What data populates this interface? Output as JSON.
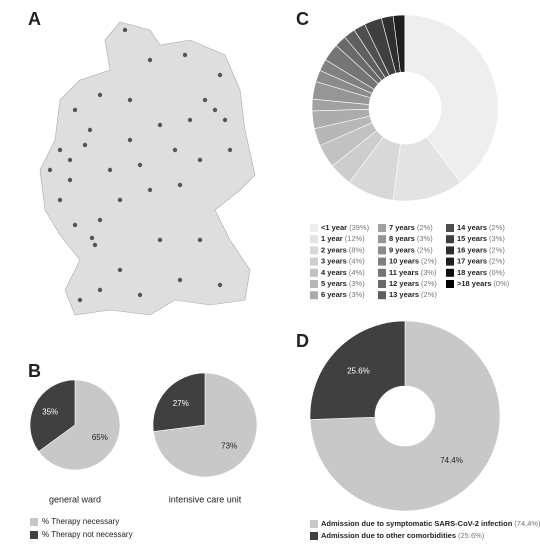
{
  "panels": [
    "A",
    "B",
    "C",
    "D"
  ],
  "chart_data": [
    {
      "type": "pie",
      "title": "general ward",
      "categories": [
        "% Therapy necessary",
        "% Therapy not necessary"
      ],
      "values": [
        65,
        35
      ],
      "value_labels": [
        "65%",
        "35%"
      ],
      "colors": [
        "#c8c8c8",
        "#404040"
      ]
    },
    {
      "type": "pie",
      "title": "intensive care unit",
      "values": [
        73,
        27
      ],
      "value_labels": [
        "73%",
        "27%"
      ],
      "colors": [
        "#c8c8c8",
        "#404040"
      ]
    },
    {
      "type": "donut",
      "categories": [
        "<1 year",
        "1 year",
        "2 years",
        "3 years",
        "4 years",
        "5 years",
        "6 years",
        "7 years",
        "8 years",
        "9 years",
        "10 years",
        "11 years",
        "12 years",
        "13 years",
        "14 years",
        "15 years",
        "16 years",
        "17 years",
        "18 years",
        ">18 years"
      ],
      "values": [
        39,
        12,
        8,
        4,
        4,
        3,
        3,
        2,
        3,
        2,
        2,
        3,
        2,
        2,
        2,
        3,
        2,
        2,
        0,
        0
      ],
      "value_labels": [
        "(39%)",
        "(12%)",
        "(8%)",
        "(4%)",
        "(4%)",
        "(3%)",
        "(3%)",
        "(2%)",
        "(3%)",
        "(2%)",
        "(2%)",
        "(3%)",
        "(2%)",
        "(2%)",
        "(2%)",
        "(3%)",
        "(2%)",
        "(2%)",
        "(0%)",
        "(0%)"
      ],
      "colors": [
        "#eeeeee",
        "#e3e3e3",
        "#d8d8d8",
        "#cdcdcd",
        "#c2c2c2",
        "#b7b7b7",
        "#acacac",
        "#a1a1a1",
        "#969696",
        "#8b8b8b",
        "#808080",
        "#757575",
        "#6a6a6a",
        "#5f5f5f",
        "#4f4f4f",
        "#3f3f3f",
        "#2f2f2f",
        "#1f1f1f",
        "#0f0f0f",
        "#000000"
      ]
    },
    {
      "type": "donut",
      "categories": [
        "Admission due to symptomatic SARS-CoV-2 infection",
        "Admission due to other comorbidities"
      ],
      "values": [
        74.4,
        25.6
      ],
      "value_labels": [
        "74.4%",
        "25.6%"
      ],
      "legend_labels": [
        "(74.4%)",
        "(25.6%)"
      ],
      "colors": [
        "#c8c8c8",
        "#404040"
      ]
    }
  ]
}
